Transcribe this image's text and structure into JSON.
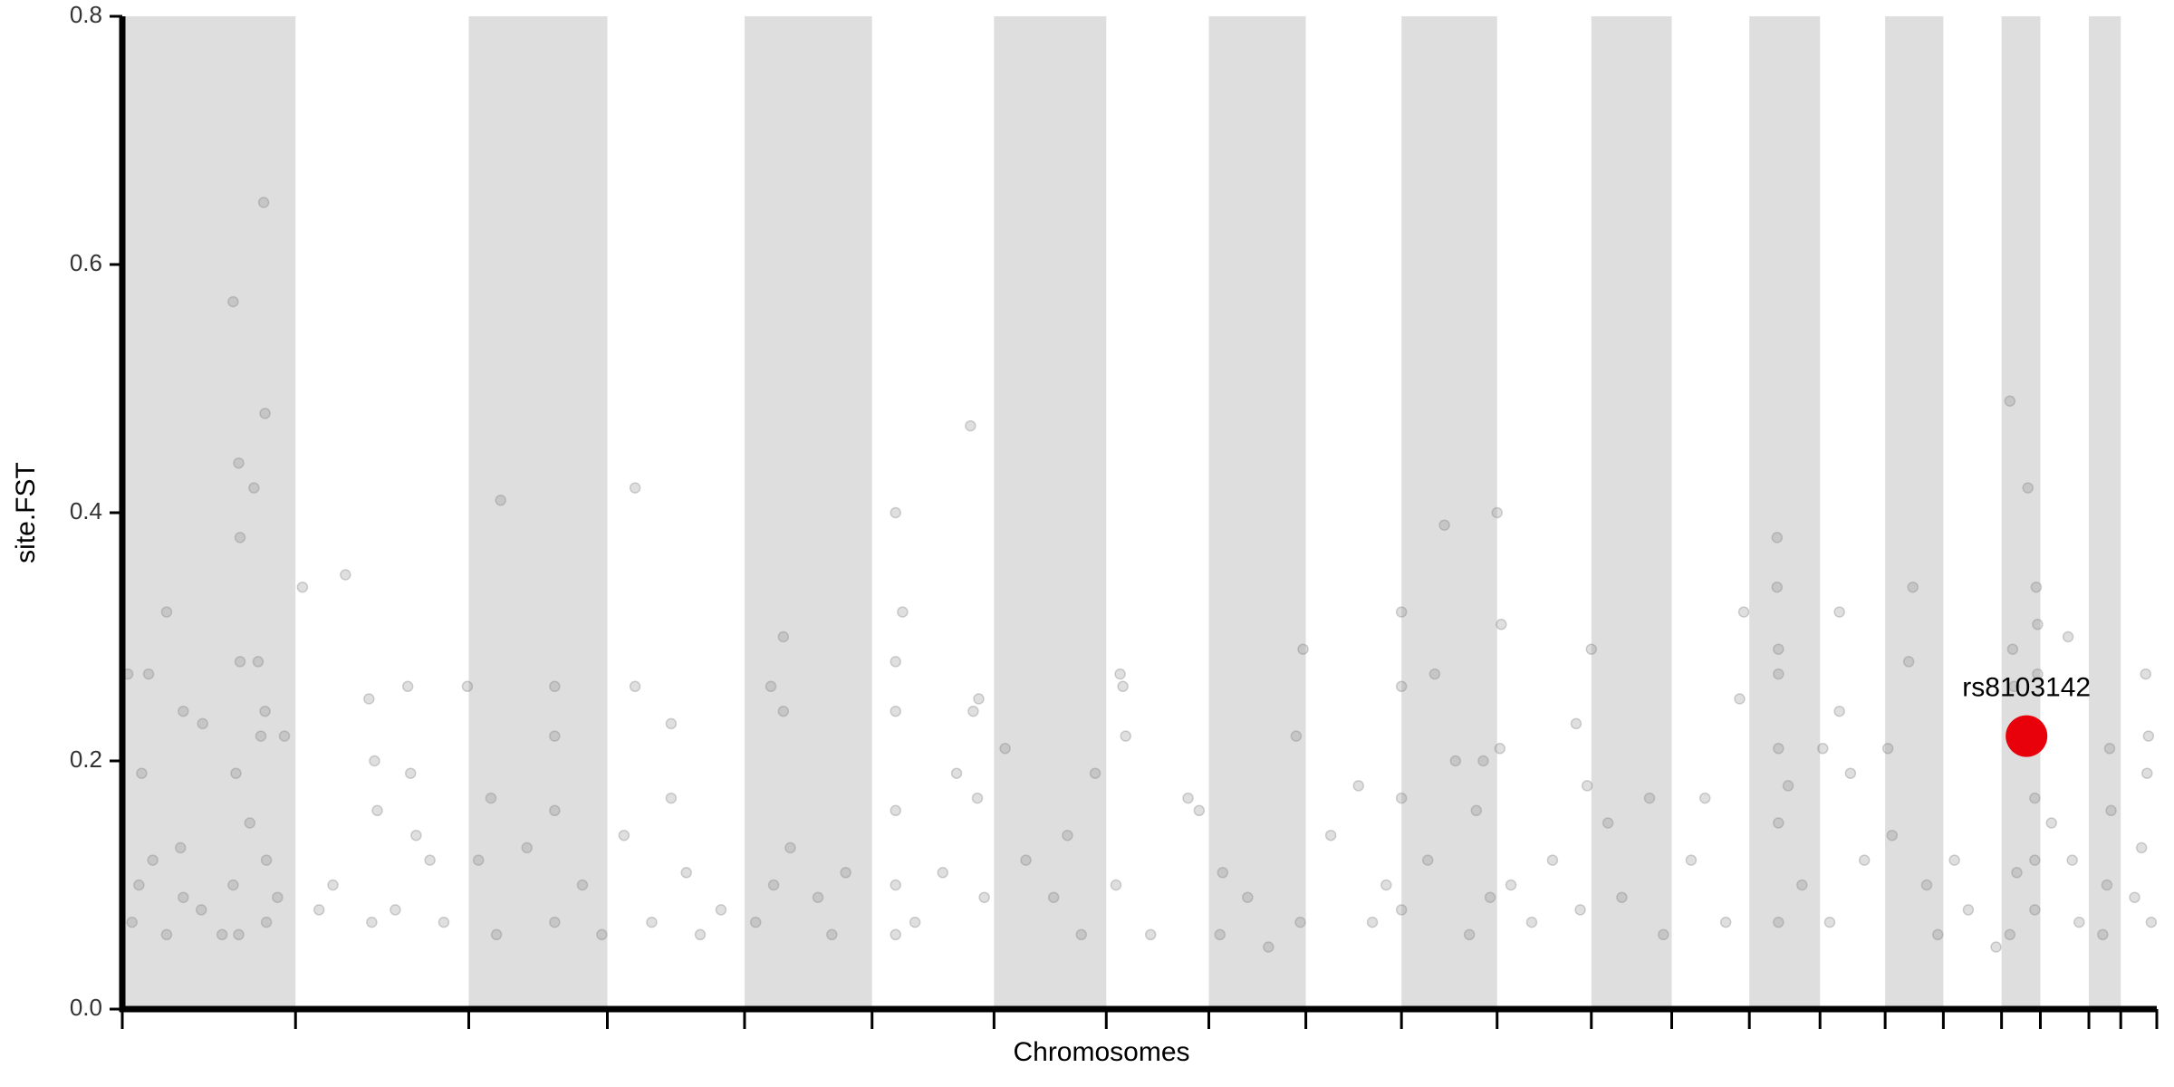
{
  "chart_data": {
    "type": "scatter",
    "xlabel": "Chromosomes",
    "ylabel": "site.FST",
    "xlim": [
      88,
      1556
    ],
    "xticks": [
      88,
      213,
      338,
      438,
      537,
      629,
      717,
      798,
      872,
      942,
      1011,
      1080,
      1148,
      1206,
      1262,
      1313,
      1360,
      1402,
      1444,
      1472,
      1507,
      1530,
      1556
    ],
    "ylim": [
      0,
      0.8
    ],
    "yticks": [
      {
        "value": 0,
        "label": "0.0"
      },
      0.2,
      0.4,
      0.6,
      0.8
    ],
    "band_color": "#dedede",
    "points": {
      "color": "#808080",
      "x": [
        92,
        102,
        107,
        120,
        132,
        146,
        168,
        170,
        172,
        173,
        173,
        183,
        186,
        190,
        191,
        191,
        188,
        205,
        95,
        100,
        110,
        120,
        132,
        145,
        168,
        172,
        180,
        192,
        192,
        200,
        160,
        130,
        218,
        249,
        266,
        268,
        270,
        272,
        294,
        296,
        300,
        310,
        320,
        240,
        230,
        285,
        337,
        361,
        354,
        345,
        358,
        400,
        400,
        400,
        400,
        420,
        434,
        380,
        458,
        458,
        470,
        484,
        484,
        495,
        520,
        505,
        450,
        556,
        565,
        565,
        558,
        570,
        545,
        590,
        610,
        600,
        646,
        646,
        646,
        646,
        646,
        646,
        651,
        660,
        700,
        702,
        706,
        705,
        690,
        680,
        710,
        725,
        740,
        760,
        780,
        790,
        770,
        810,
        808,
        812,
        805,
        830,
        857,
        865,
        882,
        880,
        900,
        935,
        938,
        915,
        940,
        960,
        980,
        1000,
        990,
        1011,
        1011,
        1011,
        1011,
        1035,
        1042,
        1050,
        1065,
        1070,
        1075,
        1060,
        1030,
        1080,
        1083,
        1082,
        1090,
        1105,
        1120,
        1137,
        1140,
        1145,
        1148,
        1160,
        1170,
        1190,
        1200,
        1220,
        1245,
        1255,
        1258,
        1230,
        1282,
        1282,
        1283,
        1283,
        1283,
        1283,
        1283,
        1300,
        1290,
        1315,
        1327,
        1327,
        1335,
        1320,
        1345,
        1362,
        1380,
        1377,
        1365,
        1390,
        1398,
        1420,
        1440,
        1410,
        1450,
        1463,
        1469,
        1470,
        1452,
        1453,
        1470,
        1468,
        1468,
        1468,
        1450,
        1455,
        1492,
        1480,
        1495,
        1500,
        1522,
        1523,
        1520,
        1517,
        1548,
        1550,
        1549,
        1545,
        1552,
        1540
      ],
      "y": [
        0.27,
        0.19,
        0.27,
        0.32,
        0.24,
        0.23,
        0.57,
        0.19,
        0.44,
        0.38,
        0.28,
        0.42,
        0.28,
        0.65,
        0.48,
        0.24,
        0.22,
        0.22,
        0.07,
        0.1,
        0.12,
        0.06,
        0.09,
        0.08,
        0.1,
        0.06,
        0.15,
        0.07,
        0.12,
        0.09,
        0.06,
        0.13,
        0.34,
        0.35,
        0.25,
        0.07,
        0.2,
        0.16,
        0.26,
        0.19,
        0.14,
        0.12,
        0.07,
        0.1,
        0.08,
        0.08,
        0.26,
        0.41,
        0.17,
        0.12,
        0.06,
        0.26,
        0.22,
        0.16,
        0.07,
        0.1,
        0.06,
        0.13,
        0.42,
        0.26,
        0.07,
        0.23,
        0.17,
        0.11,
        0.08,
        0.06,
        0.14,
        0.26,
        0.3,
        0.24,
        0.1,
        0.13,
        0.07,
        0.09,
        0.11,
        0.06,
        0.4,
        0.28,
        0.24,
        0.16,
        0.1,
        0.06,
        0.32,
        0.07,
        0.47,
        0.24,
        0.25,
        0.17,
        0.19,
        0.11,
        0.09,
        0.21,
        0.12,
        0.09,
        0.06,
        0.19,
        0.14,
        0.26,
        0.27,
        0.22,
        0.1,
        0.06,
        0.17,
        0.16,
        0.11,
        0.06,
        0.09,
        0.22,
        0.07,
        0.05,
        0.29,
        0.14,
        0.18,
        0.1,
        0.07,
        0.32,
        0.26,
        0.17,
        0.08,
        0.27,
        0.39,
        0.2,
        0.16,
        0.2,
        0.09,
        0.06,
        0.12,
        0.4,
        0.31,
        0.21,
        0.1,
        0.07,
        0.12,
        0.23,
        0.08,
        0.18,
        0.29,
        0.15,
        0.09,
        0.17,
        0.06,
        0.12,
        0.07,
        0.25,
        0.32,
        0.17,
        0.38,
        0.34,
        0.29,
        0.27,
        0.21,
        0.15,
        0.07,
        0.1,
        0.18,
        0.21,
        0.32,
        0.24,
        0.19,
        0.07,
        0.12,
        0.21,
        0.34,
        0.28,
        0.14,
        0.1,
        0.06,
        0.08,
        0.05,
        0.12,
        0.49,
        0.42,
        0.34,
        0.31,
        0.29,
        0.26,
        0.27,
        0.17,
        0.12,
        0.08,
        0.06,
        0.11,
        0.3,
        0.15,
        0.12,
        0.07,
        0.21,
        0.16,
        0.1,
        0.06,
        0.27,
        0.22,
        0.19,
        0.13,
        0.07,
        0.09
      ]
    },
    "highlight": {
      "label": "rs8103142",
      "x": 1462,
      "y": 0.22,
      "color": "#e8000b"
    }
  }
}
